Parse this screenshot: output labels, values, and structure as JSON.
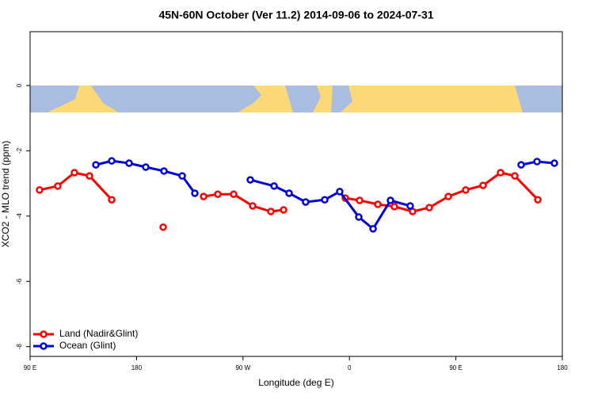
{
  "chart_data": {
    "type": "line",
    "title": "45N-60N October (Ver 11.2)   2014-09-06 to 2024-07-31",
    "x_label": "Longitude (deg E)",
    "y_label": "XCO2 - MLO trend (ppm)",
    "xlim": [
      90,
      540
    ],
    "ylim": [
      -8.3,
      1.65
    ],
    "xticks": [
      {
        "value": 90,
        "label": "90 E"
      },
      180,
      {
        "value": 270,
        "label": "90 W"
      },
      {
        "value": 360,
        "label": "0"
      },
      {
        "value": 450,
        "label": "90 E"
      },
      {
        "value": 540,
        "label": "180"
      }
    ],
    "yticks": [
      0,
      -2,
      -4,
      -6,
      -8
    ],
    "legend": "bottom-left",
    "series": [
      {
        "name": "Land (Nadir&Glint)",
        "color": "#ff0000",
        "x": [
          98,
          113.4,
          127.5,
          140.2,
          159,
          null,
          202.5,
          null,
          236.7,
          248.7,
          262.1,
          278.2,
          293.6,
          304.3,
          null,
          356.5,
          368.6,
          384,
          398,
          413.4,
          427.5,
          443.6,
          458.3,
          473,
          487.8,
          499.8,
          519.3
        ],
        "values": [
          -3.2,
          -3.08,
          -2.67,
          -2.77,
          -3.5,
          null,
          -4.34,
          null,
          -3.4,
          -3.33,
          -3.33,
          -3.69,
          -3.86,
          -3.81,
          null,
          -3.45,
          -3.52,
          -3.64,
          -3.71,
          -3.86,
          -3.74,
          -3.4,
          -3.2,
          -3.06,
          -2.67,
          -2.77,
          -3.5
        ]
      },
      {
        "name": "Ocean (Glint)",
        "color": "#0000dd",
        "x": [
          145.6,
          159,
          173.7,
          187.8,
          203.2,
          218.6,
          229.3,
          null,
          276.2,
          296.3,
          309,
          323,
          339.1,
          351.8,
          367.9,
          380,
          394.7,
          411.4,
          null,
          505.2,
          518.6,
          533.3
        ],
        "values": [
          -2.43,
          -2.31,
          -2.38,
          -2.5,
          -2.62,
          -2.77,
          -3.3,
          null,
          -2.89,
          -3.08,
          -3.3,
          -3.57,
          -3.5,
          -3.25,
          -4.03,
          -4.39,
          -3.52,
          -3.69,
          null,
          -2.43,
          -2.33,
          -2.38
        ]
      }
    ]
  }
}
